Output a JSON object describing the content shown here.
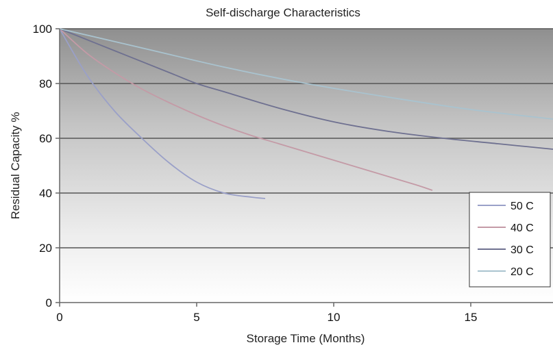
{
  "chart_data": {
    "type": "line",
    "title": "Self-discharge Characteristics",
    "xlabel": "Storage Time (Months)",
    "ylabel": "Residual Capacity %",
    "xlim": [
      0,
      18
    ],
    "ylim": [
      0,
      100
    ],
    "xticks": [
      0,
      5,
      10,
      15
    ],
    "yticks": [
      0,
      20,
      40,
      60,
      80,
      100
    ],
    "grid": "horizontal",
    "background": "vertical gradient, dark gray at top to white at bottom",
    "legend_position": "bottom-right",
    "series": [
      {
        "name": "50 C",
        "color": "#9aa0c8",
        "x": [
          0,
          1,
          2,
          3,
          4,
          5,
          6,
          7,
          7.5
        ],
        "y": [
          100,
          83,
          70,
          60,
          51,
          44,
          40,
          38.5,
          38
        ]
      },
      {
        "name": "40 C",
        "color": "#c49aa6",
        "x": [
          0,
          1,
          2,
          3,
          4,
          5,
          6,
          7,
          8,
          9,
          10,
          11,
          12,
          13,
          13.6
        ],
        "y": [
          100,
          91,
          84,
          78,
          73,
          68.5,
          64.5,
          61,
          58,
          55,
          52,
          49,
          46,
          43,
          41
        ]
      },
      {
        "name": "30 C",
        "color": "#6e7090",
        "x": [
          0,
          2,
          4,
          5,
          6,
          8,
          10,
          12,
          14,
          16,
          18
        ],
        "y": [
          100,
          92,
          84,
          80,
          77,
          71,
          66,
          62.5,
          60,
          58,
          56
        ]
      },
      {
        "name": "20 C",
        "color": "#a9c3cf",
        "x": [
          0,
          3,
          6,
          9,
          12,
          15,
          18
        ],
        "y": [
          100,
          93,
          86,
          80,
          75,
          70.5,
          67
        ]
      }
    ]
  }
}
